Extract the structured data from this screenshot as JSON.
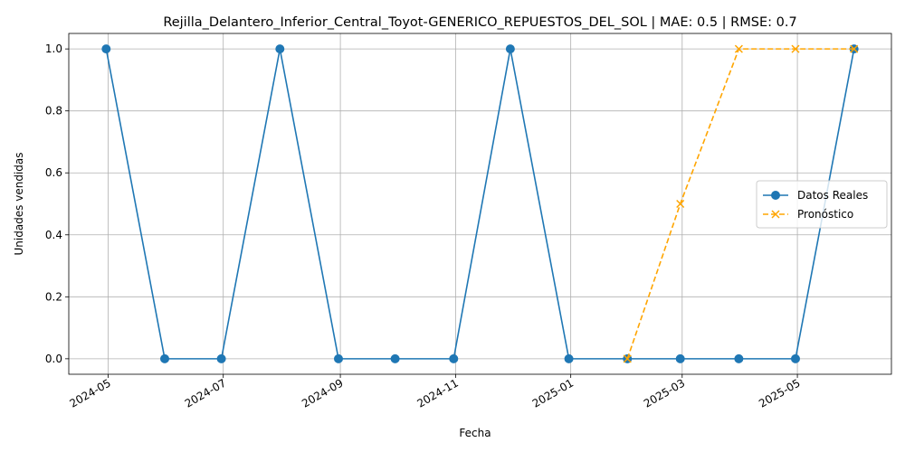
{
  "chart_data": {
    "type": "line",
    "title": "Rejilla_Delantero_Inferior_Central_Toyot-GENERICO_REPUESTOS_DEL_SOL | MAE: 0.5 | RMSE: 0.7",
    "xlabel": "Fecha",
    "ylabel": "Unidades vendidas",
    "ylim": [
      -0.05,
      1.05
    ],
    "x_tick_labels": [
      "2024-05",
      "2024-07",
      "2024-09",
      "2024-11",
      "2025-01",
      "2025-03",
      "2025-05"
    ],
    "y_tick_labels": [
      "0.0",
      "0.2",
      "0.4",
      "0.6",
      "0.8",
      "1.0"
    ],
    "grid": true,
    "legend_position": "center-right",
    "series": [
      {
        "name": "Datos Reales",
        "color": "#1f77b4",
        "marker": "circle",
        "linestyle": "solid",
        "x": [
          "2024-04-30",
          "2024-05-31",
          "2024-06-30",
          "2024-07-31",
          "2024-08-31",
          "2024-09-30",
          "2024-10-31",
          "2024-11-30",
          "2024-12-31",
          "2025-01-31",
          "2025-02-28",
          "2025-03-31",
          "2025-04-30",
          "2025-05-31"
        ],
        "values": [
          1,
          0,
          0,
          1,
          0,
          0,
          0,
          1,
          0,
          0,
          0,
          0,
          0,
          1
        ]
      },
      {
        "name": "Pronóstico",
        "color": "#ffa500",
        "marker": "x",
        "linestyle": "dashed",
        "x": [
          "2025-01-31",
          "2025-02-28",
          "2025-03-31",
          "2025-04-30",
          "2025-05-31"
        ],
        "values": [
          0,
          0.5,
          1,
          1,
          1
        ]
      }
    ]
  }
}
